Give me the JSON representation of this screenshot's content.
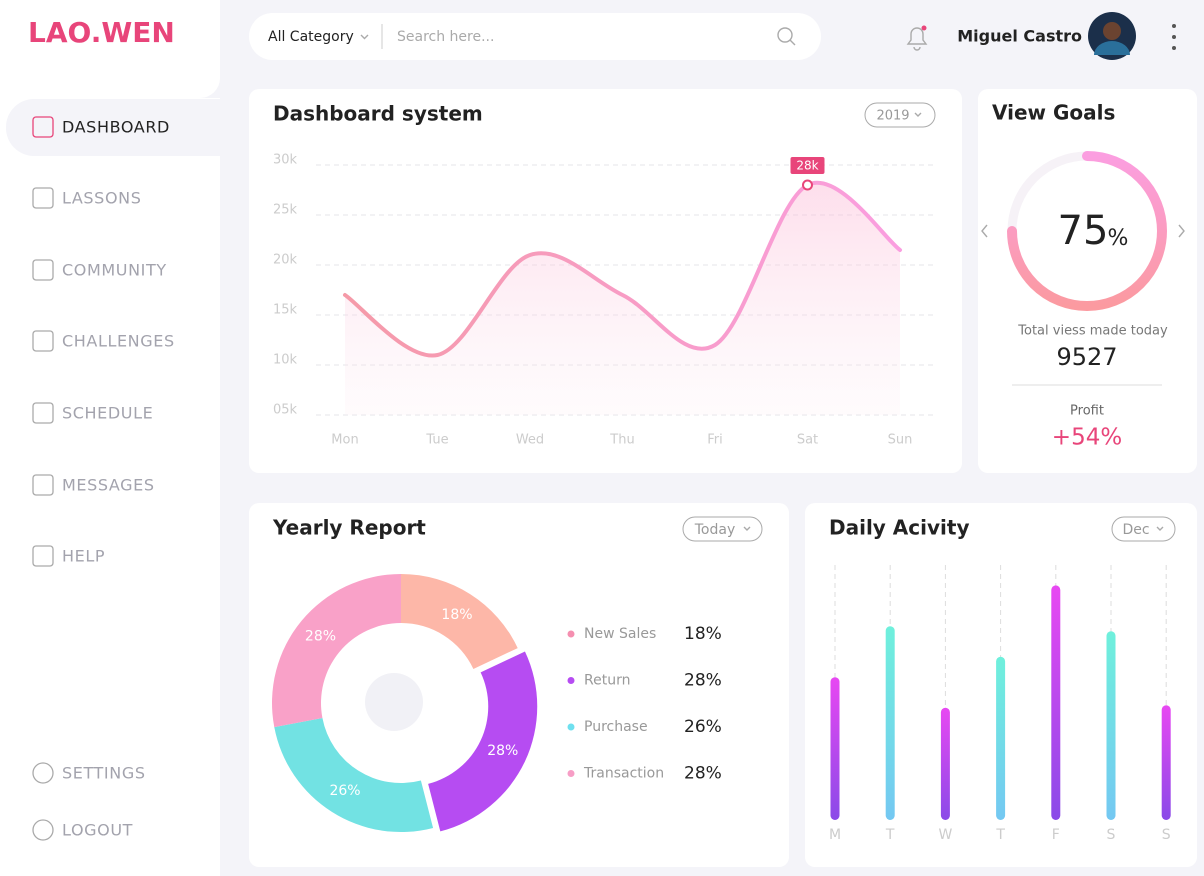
{
  "brand": "LAO.WEN",
  "search": {
    "category": "All Category",
    "placeholder": "Search here..."
  },
  "user": {
    "name": "Miguel Castro"
  },
  "nav": [
    "DASHBOARD",
    "LASSONS",
    "COMMUNITY",
    "CHALLENGES",
    "SCHEDULE",
    "MESSAGES",
    "HELP"
  ],
  "nav_bottom": [
    "SETTINGS",
    "LOGOUT"
  ],
  "view_goals": {
    "title": "View Goals",
    "percent": 75,
    "percent_unit": "%",
    "caption": "Total viess made today",
    "total": "9527",
    "profit_label": "Profit",
    "profit": "+54%"
  },
  "chart_data": [
    {
      "type": "line",
      "title": "Dashboard system",
      "filter": "2019",
      "categories": [
        "Mon",
        "Tue",
        "Wed",
        "Thu",
        "Fri",
        "Sat",
        "Sun"
      ],
      "values": [
        17000,
        11000,
        21000,
        17000,
        12000,
        28000,
        21500
      ],
      "color": "#f58fb0",
      "ylim": [
        5000,
        30000
      ],
      "yticks": [
        {
          "value": 30000,
          "label": "30k"
        },
        {
          "value": 25000,
          "label": "25k"
        },
        {
          "value": 20000,
          "label": "20k"
        },
        {
          "value": 15000,
          "label": "15k"
        },
        {
          "value": 10000,
          "label": "10k"
        },
        {
          "value": 5000,
          "label": "05k"
        }
      ],
      "grid": true,
      "annotation": {
        "index": 5,
        "label": "28k"
      }
    },
    {
      "type": "pie",
      "title": "Yearly Report",
      "filter": "Today",
      "categories": [
        "New Sales",
        "Return",
        "Purchase",
        "Transaction"
      ],
      "values": [
        18,
        28,
        26,
        28
      ],
      "value_labels": [
        "18%",
        "28%",
        "26%",
        "28%"
      ],
      "colors": [
        "#fdb7a8",
        "#b64cf2",
        "#72e2e3",
        "#f9a1c8"
      ],
      "legend_colors": [
        "#f58fb0",
        "#b64cf2",
        "#6fe0ef",
        "#f79ec6"
      ]
    },
    {
      "type": "bar",
      "title": "Daily Acivity",
      "filter": "Dec",
      "categories": [
        "M",
        "T",
        "W",
        "T",
        "F",
        "S",
        "S"
      ],
      "values": [
        56,
        76,
        44,
        64,
        92,
        74,
        45
      ],
      "colors": [
        "#b64cf2",
        "#72e2e3",
        "#b64cf2",
        "#72e2e3",
        "#b64cf2",
        "#72e2e3",
        "#b64cf2"
      ],
      "ylim": [
        0,
        100
      ]
    }
  ]
}
